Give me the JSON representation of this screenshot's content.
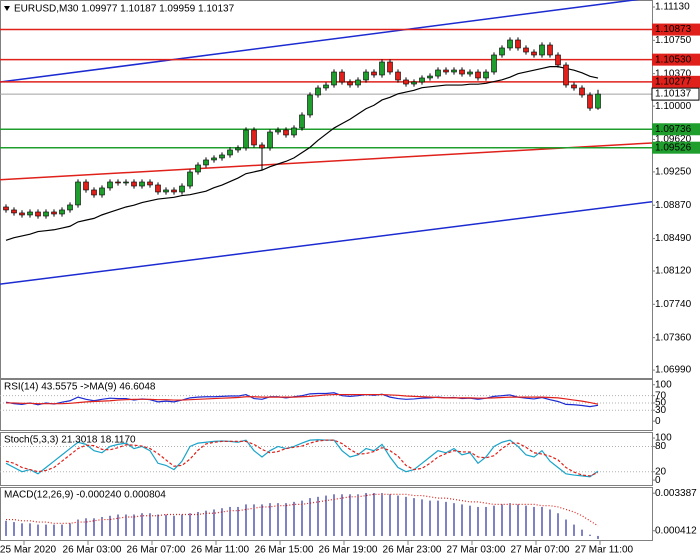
{
  "chart_data": [
    {
      "type": "candlestick",
      "title": "EURUSD,M30  1.09977 1.10187 1.09959 1.10137",
      "categories": [
        null,
        null,
        "25 Mar 2020",
        null,
        null,
        null,
        null,
        null,
        null,
        null,
        "26 Mar 03:00",
        null,
        null,
        null,
        null,
        null,
        null,
        null,
        "26 Mar 07:00",
        null,
        null,
        null,
        null,
        null,
        null,
        null,
        "26 Mar 11:00",
        null,
        null,
        null,
        null,
        null,
        null,
        null,
        "26 Mar 15:00",
        null,
        null,
        null,
        null,
        null,
        null,
        null,
        "26 Mar 19:00",
        null,
        null,
        null,
        null,
        null,
        null,
        null,
        "26 Mar 23:00",
        null,
        null,
        null,
        null,
        null,
        null,
        null,
        "27 Mar 03:00",
        null,
        null,
        null,
        null,
        null,
        null,
        null,
        "27 Mar 07:00",
        null,
        null,
        null,
        null,
        null,
        null,
        null,
        "27 Mar 11:00"
      ],
      "open": [
        1.0885,
        1.08816,
        1.08782,
        1.08759,
        1.08793,
        1.08747,
        1.08793,
        1.0877,
        1.08816,
        1.08873,
        1.09135,
        1.09044,
        1.08987,
        1.09067,
        1.09135,
        1.09124,
        1.09135,
        1.09089,
        1.09135,
        1.09101,
        1.09021,
        1.09044,
        1.09021,
        1.09089,
        1.09249,
        1.09329,
        1.09386,
        1.09409,
        1.09443,
        1.095,
        1.09523,
        1.09728,
        1.09557,
        1.09523,
        1.09705,
        1.09728,
        1.09671,
        1.09751,
        1.09899,
        1.10127,
        1.10207,
        1.10241,
        1.10389,
        1.10275,
        1.10241,
        1.10298,
        1.10389,
        1.10355,
        1.10503,
        1.10389,
        1.10298,
        1.10252,
        1.10275,
        1.10321,
        1.10343,
        1.10412,
        1.10389,
        1.10412,
        1.10366,
        1.10389,
        1.10321,
        1.10389,
        1.10583,
        1.10663,
        1.10754,
        1.10663,
        1.10617,
        1.10583,
        1.10697,
        1.10583,
        1.10469,
        1.10241,
        1.10207,
        1.10127,
        1.09977
      ],
      "high": [
        1.0888,
        1.08846,
        1.08812,
        1.08823,
        1.08823,
        1.08823,
        1.08823,
        1.08846,
        1.08903,
        1.09165,
        1.09165,
        1.09074,
        1.09097,
        1.09165,
        1.09165,
        1.09165,
        1.09165,
        1.09165,
        1.09165,
        1.09131,
        1.09074,
        1.09074,
        1.09119,
        1.09279,
        1.09359,
        1.09416,
        1.09439,
        1.09473,
        1.0953,
        1.09553,
        1.09758,
        1.09758,
        1.09587,
        1.09735,
        1.09758,
        1.09758,
        1.09781,
        1.09929,
        1.10157,
        1.10237,
        1.10271,
        1.10419,
        1.10419,
        1.10305,
        1.10328,
        1.10419,
        1.10419,
        1.10533,
        1.10533,
        1.10419,
        1.10328,
        1.10305,
        1.10351,
        1.10373,
        1.10442,
        1.10442,
        1.10442,
        1.10442,
        1.10419,
        1.10419,
        1.10419,
        1.10613,
        1.10693,
        1.10784,
        1.10784,
        1.10693,
        1.10647,
        1.10727,
        1.10727,
        1.10613,
        1.10499,
        1.10271,
        1.10237,
        1.10157,
        1.10187
      ],
      "low": [
        1.08786,
        1.08752,
        1.08729,
        1.08729,
        1.08717,
        1.08717,
        1.0874,
        1.0874,
        1.08786,
        1.08843,
        1.09014,
        1.08957,
        1.08957,
        1.09037,
        1.09094,
        1.09094,
        1.09059,
        1.09059,
        1.09071,
        1.08991,
        1.08991,
        1.08991,
        1.08991,
        1.09059,
        1.09219,
        1.09299,
        1.09356,
        1.09379,
        1.09413,
        1.0947,
        1.09493,
        1.09527,
        1.0927,
        1.09493,
        1.09675,
        1.09641,
        1.09641,
        1.09721,
        1.09869,
        1.10097,
        1.10177,
        1.10211,
        1.10245,
        1.10211,
        1.10211,
        1.10268,
        1.10325,
        1.10325,
        1.10359,
        1.10268,
        1.10222,
        1.10222,
        1.10245,
        1.10291,
        1.10313,
        1.10359,
        1.10359,
        1.10336,
        1.10336,
        1.10291,
        1.10291,
        1.10359,
        1.10553,
        1.10633,
        1.10633,
        1.10587,
        1.10553,
        1.10553,
        1.10553,
        1.10439,
        1.10211,
        1.10177,
        1.10097,
        1.09947,
        1.09959
      ],
      "close": [
        1.08816,
        1.08782,
        1.08759,
        1.08793,
        1.08747,
        1.08793,
        1.0877,
        1.08816,
        1.08873,
        1.09135,
        1.09044,
        1.08987,
        1.09067,
        1.09135,
        1.09124,
        1.09135,
        1.09089,
        1.09135,
        1.09101,
        1.09021,
        1.09044,
        1.09021,
        1.09089,
        1.09249,
        1.09329,
        1.09386,
        1.09409,
        1.09443,
        1.095,
        1.09523,
        1.09728,
        1.09557,
        1.09523,
        1.09705,
        1.09728,
        1.09671,
        1.09751,
        1.09899,
        1.10127,
        1.10207,
        1.10241,
        1.10389,
        1.10275,
        1.10241,
        1.10298,
        1.10389,
        1.10355,
        1.10503,
        1.10389,
        1.10298,
        1.10252,
        1.10275,
        1.10321,
        1.10343,
        1.10412,
        1.10389,
        1.10412,
        1.10366,
        1.10389,
        1.10321,
        1.10389,
        1.10583,
        1.10663,
        1.10754,
        1.10663,
        1.10617,
        1.10583,
        1.10697,
        1.10583,
        1.10469,
        1.10241,
        1.10207,
        1.10127,
        1.09977,
        1.10137
      ],
      "up_color": "#1f9e2e",
      "down_color": "#e0201a",
      "lines": [
        {
          "color": "#000000",
          "values": [
            1.0847,
            1.085,
            1.0852,
            1.0854,
            1.0857,
            1.0858,
            1.0859,
            1.0861,
            1.0863,
            1.0868,
            1.087,
            1.0872,
            1.0876,
            1.0879,
            1.0882,
            1.0885,
            1.0887,
            1.089,
            1.0892,
            1.0894,
            1.0895,
            1.0896,
            1.0898,
            1.0899,
            1.0901,
            1.0903,
            1.0907,
            1.091,
            1.0914,
            1.0918,
            1.0923,
            1.0925,
            1.0927,
            1.0931,
            1.0934,
            1.0937,
            1.0941,
            1.0947,
            1.0953,
            1.0961,
            1.0968,
            1.0975,
            1.098,
            1.0985,
            1.0991,
            1.0997,
            1.1001,
            1.1007,
            1.101,
            1.1014,
            1.1016,
            1.1018,
            1.1021,
            1.1022,
            1.1023,
            1.1024,
            1.1024,
            1.1024,
            1.1025,
            1.1025,
            1.1026,
            1.1028,
            1.103,
            1.1033,
            1.1037,
            1.1039,
            1.1041,
            1.1043,
            1.1045,
            1.1045,
            1.1043,
            1.1041,
            1.1038,
            1.1034,
            1.1032
          ]
        }
      ],
      "trendlines": [
        {
          "color": "#1c2bd1",
          "start": 1.10275,
          "end": 1.11237
        },
        {
          "color": "#1c2bd1",
          "start": 1.0797,
          "end": 1.0891
        },
        {
          "color": "#e0201a",
          "start": 1.0916,
          "end": 1.0958
        }
      ],
      "levels": [
        {
          "value": 1.10873,
          "color": "#e0201a"
        },
        {
          "value": 1.1053,
          "label": "1.10530",
          "color": "#e0201a"
        },
        {
          "value": 1.10277,
          "color": "#e0201a"
        },
        {
          "value": 1.09736,
          "color": "#1f9e2e"
        },
        {
          "value": 1.09526,
          "color": "#1f9e2e"
        }
      ],
      "ylim": [
        1.069,
        1.1121
      ],
      "yticks": [
        {
          "value": 1.1113,
          "label": "1.11130"
        },
        {
          "value": 1.1075,
          "label": "1.10750"
        },
        {
          "value": 1.1037,
          "label": "1.10370"
        },
        {
          "value": 1.1,
          "label": "1.10000"
        },
        {
          "value": 1.0962,
          "label": "1.09620"
        },
        {
          "value": 1.0925,
          "label": "1.09250"
        },
        {
          "value": 1.0887,
          "label": "1.08870"
        },
        {
          "value": 1.0849,
          "label": "1.08490"
        },
        {
          "value": 1.0812,
          "label": "1.08120"
        },
        {
          "value": 1.0774,
          "label": "1.07740"
        },
        {
          "value": 1.0736,
          "label": "1.07360"
        },
        {
          "value": 1.0699,
          "label": "1.06990"
        }
      ]
    },
    {
      "type": "line",
      "title": "RSI(14) 43.5575 ->MA(9) 46.6048",
      "grid": true,
      "ylim": [
        -27,
        113
      ],
      "yticks": [
        100,
        70,
        50,
        30,
        0
      ],
      "series": [
        {
          "color": "#1c2bd1",
          "style": "solid",
          "values": [
            52,
            48,
            46,
            50,
            45,
            50,
            47,
            52,
            56,
            66,
            60,
            56,
            60,
            63,
            62,
            62,
            58,
            61,
            59,
            53,
            55,
            53,
            58,
            64,
            66,
            67,
            67,
            68,
            69,
            69,
            73,
            62,
            60,
            67,
            67,
            64,
            67,
            70,
            75,
            76,
            76,
            78,
            70,
            68,
            70,
            73,
            71,
            74,
            66,
            62,
            60,
            61,
            63,
            64,
            66,
            64,
            65,
            62,
            63,
            60,
            63,
            68,
            70,
            72,
            66,
            63,
            61,
            65,
            59,
            54,
            46,
            45,
            43,
            40,
            43.5575
          ]
        },
        {
          "color": "#e0201a",
          "style": "solid",
          "values": [
            50,
            50,
            49,
            49,
            48,
            48,
            48,
            48,
            49,
            51,
            53,
            54,
            55,
            56,
            58,
            59,
            60,
            60,
            60,
            59,
            59,
            58,
            58,
            59,
            60,
            61,
            62,
            63,
            64,
            65,
            67,
            67,
            66,
            66,
            66,
            66,
            66,
            67,
            68,
            70,
            72,
            73,
            73,
            73,
            73,
            73,
            73,
            73,
            72,
            71,
            69,
            68,
            67,
            66,
            65,
            64,
            64,
            64,
            64,
            63,
            63,
            64,
            65,
            66,
            66,
            66,
            66,
            66,
            65,
            64,
            61,
            58,
            55,
            51,
            46.6048
          ]
        }
      ]
    },
    {
      "type": "line",
      "title": "Stoch(5,3,3) 21.3018 18.1170",
      "grid": true,
      "ylim": [
        -14,
        112
      ],
      "yticks": [
        100,
        80,
        20,
        0
      ],
      "series": [
        {
          "color": "#19a3c9",
          "style": "solid",
          "values": [
            40,
            30,
            20,
            25,
            15,
            30,
            45,
            60,
            75,
            90,
            85,
            70,
            65,
            80,
            85,
            88,
            75,
            80,
            70,
            40,
            35,
            25,
            45,
            80,
            88,
            90,
            92,
            93,
            92,
            90,
            95,
            70,
            55,
            70,
            80,
            75,
            80,
            88,
            95,
            96,
            95,
            95,
            70,
            55,
            60,
            75,
            70,
            85,
            55,
            30,
            20,
            25,
            40,
            55,
            70,
            65,
            75,
            60,
            65,
            40,
            55,
            80,
            90,
            95,
            80,
            60,
            55,
            70,
            45,
            30,
            15,
            12,
            10,
            8,
            21.3018
          ]
        },
        {
          "color": "#e0201a",
          "style": "dashed",
          "values": [
            45,
            40,
            30,
            25,
            20,
            23,
            30,
            45,
            60,
            75,
            83,
            82,
            73,
            72,
            77,
            84,
            83,
            81,
            75,
            63,
            48,
            33,
            35,
            50,
            71,
            86,
            90,
            92,
            92,
            92,
            92,
            85,
            73,
            65,
            68,
            75,
            78,
            81,
            88,
            93,
            95,
            95,
            87,
            73,
            62,
            63,
            68,
            77,
            70,
            57,
            35,
            25,
            28,
            40,
            55,
            63,
            70,
            67,
            67,
            55,
            53,
            58,
            75,
            88,
            88,
            78,
            65,
            62,
            57,
            48,
            30,
            19,
            12,
            10,
            18.117
          ]
        }
      ]
    },
    {
      "type": "bar",
      "title": "MACD(12,26,9) -0.000240 0.000804",
      "grid": false,
      "ylim": [
        -0.0004,
        0.0038
      ],
      "yticks": [
        0.003387,
        0.000412
      ],
      "series": [
        {
          "type": "bar",
          "color": "#2a2f9e",
          "values": [
            0.0012,
            0.0011,
            0.001,
            0.001,
            0.0009,
            0.0009,
            0.0009,
            0.0009,
            0.001,
            0.0013,
            0.0014,
            0.0014,
            0.0015,
            0.0016,
            0.0017,
            0.0017,
            0.0017,
            0.0018,
            0.0018,
            0.0017,
            0.0017,
            0.0016,
            0.0017,
            0.0018,
            0.0019,
            0.002,
            0.0021,
            0.0022,
            0.0023,
            0.0023,
            0.0025,
            0.0025,
            0.0025,
            0.0026,
            0.0026,
            0.0026,
            0.0027,
            0.0028,
            0.003,
            0.0031,
            0.0032,
            0.0033,
            0.0033,
            0.0033,
            0.0033,
            0.0034,
            0.0034,
            0.0034,
            0.0033,
            0.0032,
            0.0031,
            0.003,
            0.0029,
            0.0028,
            0.0028,
            0.0027,
            0.0026,
            0.0025,
            0.0024,
            0.0023,
            0.0023,
            0.0024,
            0.0025,
            0.0026,
            0.0025,
            0.0024,
            0.0023,
            0.0023,
            0.0021,
            0.0018,
            0.0013,
            0.0009,
            0.0005,
            0.0001,
            -0.00024
          ]
        },
        {
          "type": "line",
          "color": "#e0201a",
          "style": "dotted",
          "values": [
            0.0013,
            0.0013,
            0.0012,
            0.0012,
            0.0011,
            0.0011,
            0.001,
            0.001,
            0.001,
            0.0011,
            0.0011,
            0.0012,
            0.0013,
            0.0013,
            0.0014,
            0.0015,
            0.0015,
            0.0016,
            0.0016,
            0.0016,
            0.0017,
            0.0017,
            0.0017,
            0.0017,
            0.0017,
            0.0018,
            0.0018,
            0.0019,
            0.002,
            0.002,
            0.0021,
            0.0022,
            0.0023,
            0.0023,
            0.0024,
            0.0024,
            0.0025,
            0.0025,
            0.0026,
            0.0027,
            0.0028,
            0.0029,
            0.003,
            0.0031,
            0.0031,
            0.0032,
            0.0033,
            0.0033,
            0.0033,
            0.0033,
            0.0033,
            0.0032,
            0.0032,
            0.0031,
            0.003,
            0.003,
            0.0029,
            0.0028,
            0.0027,
            0.0027,
            0.0026,
            0.0025,
            0.0025,
            0.0025,
            0.0025,
            0.0025,
            0.0025,
            0.0024,
            0.0024,
            0.0023,
            0.0021,
            0.0019,
            0.0016,
            0.0012,
            0.000804
          ]
        }
      ]
    }
  ]
}
